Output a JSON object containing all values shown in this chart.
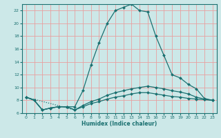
{
  "title": "",
  "xlabel": "Humidex (Indice chaleur)",
  "bg_color": "#cce8e8",
  "grid_color": "#e8a0a0",
  "line_color": "#1a7070",
  "xlim": [
    -0.5,
    23.5
  ],
  "ylim": [
    6,
    23
  ],
  "xticks": [
    0,
    1,
    2,
    3,
    4,
    5,
    6,
    7,
    8,
    9,
    10,
    11,
    12,
    13,
    14,
    15,
    16,
    17,
    18,
    19,
    20,
    21,
    22,
    23
  ],
  "yticks": [
    6,
    8,
    10,
    12,
    14,
    16,
    18,
    20,
    22
  ],
  "series": [
    {
      "x": [
        0,
        1,
        2,
        3,
        4,
        5,
        6,
        7,
        8,
        9,
        10,
        11,
        12,
        13,
        14,
        15,
        16,
        17,
        18,
        19,
        20,
        21,
        22,
        23
      ],
      "y": [
        8.5,
        8.0,
        6.5,
        6.8,
        7.0,
        7.0,
        7.0,
        9.5,
        13.5,
        17.0,
        20.0,
        22.0,
        22.5,
        23.0,
        22.0,
        21.8,
        18.0,
        15.0,
        12.0,
        11.5,
        10.5,
        9.8,
        8.3,
        8.0
      ],
      "style": "solid",
      "marker": "D",
      "markersize": 2.0
    },
    {
      "x": [
        0,
        1,
        2,
        3,
        4,
        5,
        6,
        7,
        8,
        9,
        10,
        11,
        12,
        13,
        14,
        15,
        16,
        17,
        18,
        19,
        20,
        21,
        22,
        23
      ],
      "y": [
        8.5,
        8.0,
        6.5,
        6.8,
        7.0,
        7.0,
        6.5,
        7.2,
        7.8,
        8.2,
        8.8,
        9.2,
        9.5,
        9.8,
        10.0,
        10.2,
        10.0,
        9.8,
        9.5,
        9.3,
        9.0,
        8.5,
        8.2,
        8.0
      ],
      "style": "solid",
      "marker": "D",
      "markersize": 2.0
    },
    {
      "x": [
        0,
        1,
        2,
        3,
        4,
        5,
        6,
        7,
        8,
        9,
        10,
        11,
        12,
        13,
        14,
        15,
        16,
        17,
        18,
        19,
        20,
        21,
        22,
        23
      ],
      "y": [
        8.5,
        8.0,
        6.5,
        6.8,
        7.0,
        7.0,
        6.5,
        7.0,
        7.5,
        7.8,
        8.2,
        8.5,
        8.7,
        9.0,
        9.2,
        9.2,
        9.0,
        8.8,
        8.6,
        8.5,
        8.3,
        8.2,
        8.1,
        8.0
      ],
      "style": "solid",
      "marker": "D",
      "markersize": 2.0
    },
    {
      "x": [
        0,
        6
      ],
      "y": [
        8.5,
        6.5
      ],
      "style": "dotted",
      "marker": null,
      "markersize": 0
    }
  ]
}
